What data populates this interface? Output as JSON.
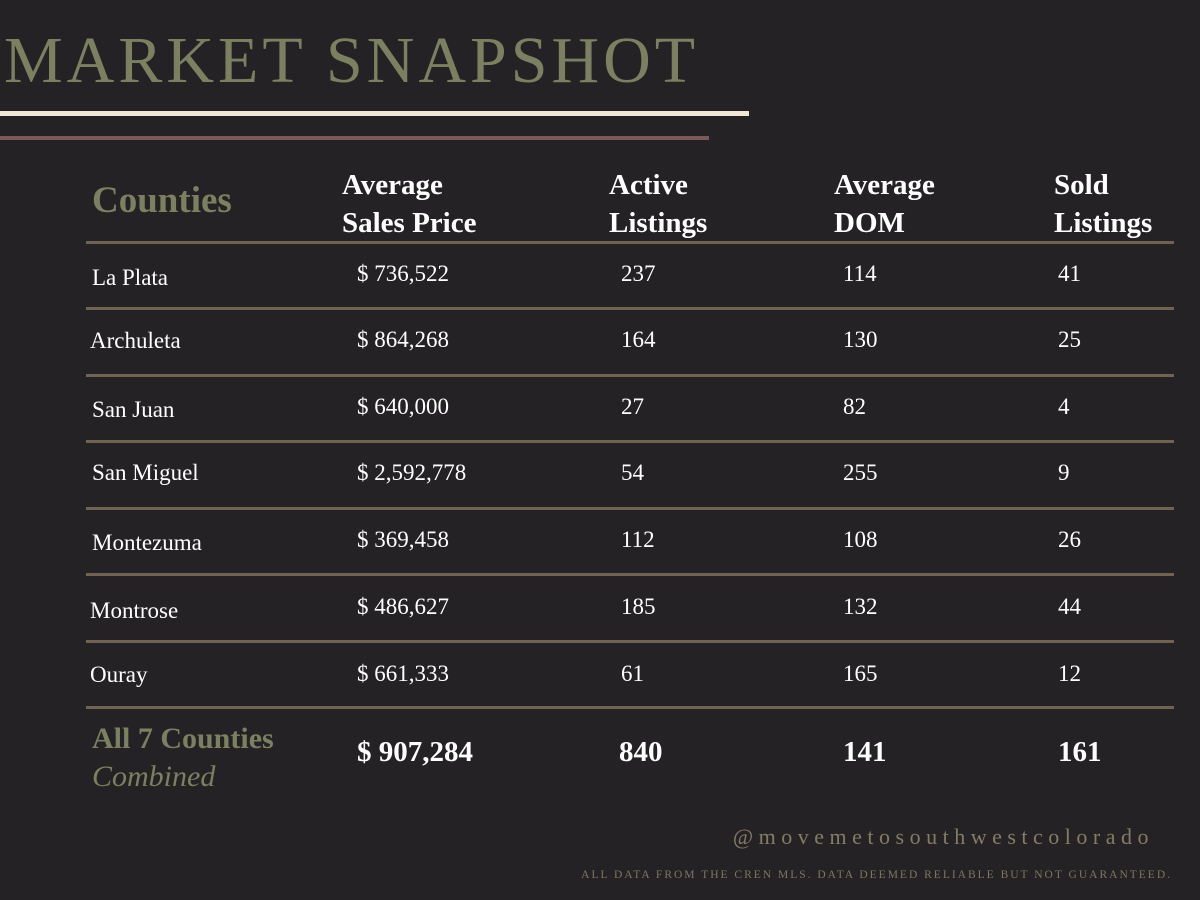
{
  "title": "MARKET SNAPSHOT",
  "header": {
    "counties": "Counties",
    "avg_price": [
      "Average",
      "Sales Price"
    ],
    "active": [
      "Active",
      "Listings"
    ],
    "dom": [
      "Average",
      "DOM"
    ],
    "sold": [
      "Sold",
      "Listings"
    ]
  },
  "rows": [
    {
      "county": "La Plata",
      "price": "$ 736,522",
      "active": "237",
      "dom": "114",
      "sold": "41"
    },
    {
      "county": "Archuleta",
      "price": "$ 864,268",
      "active": "164",
      "dom": "130",
      "sold": "25"
    },
    {
      "county": "San Juan",
      "price": "$ 640,000",
      "active": "27",
      "dom": "82",
      "sold": "4"
    },
    {
      "county": "San Miguel",
      "price": "$ 2,592,778",
      "active": "54",
      "dom": "255",
      "sold": "9"
    },
    {
      "county": "Montezuma",
      "price": "$ 369,458",
      "active": "112",
      "dom": "108",
      "sold": "26"
    },
    {
      "county": "Montrose",
      "price": "$ 486,627",
      "active": "185",
      "dom": "132",
      "sold": "44"
    },
    {
      "county": "Ouray",
      "price": "$ 661,333",
      "active": "61",
      "dom": "165",
      "sold": "12"
    }
  ],
  "combined": {
    "label": "All 7 Counties",
    "sublabel": "Combined",
    "price": "$ 907,284",
    "active": "840",
    "dom": "141",
    "sold": "161"
  },
  "handle": "@movemetosouthwestcolorado",
  "disclaimer": "ALL DATA FROM THE CREN MLS. DATA DEEMED RELIABLE BUT NOT GUARANTEED.",
  "colors": {
    "background": "#242224",
    "accent_olive": "#7b8160",
    "rule_cream": "#efe6d7",
    "rule_mauve": "#7a5a58",
    "row_divider": "#6f6452"
  }
}
